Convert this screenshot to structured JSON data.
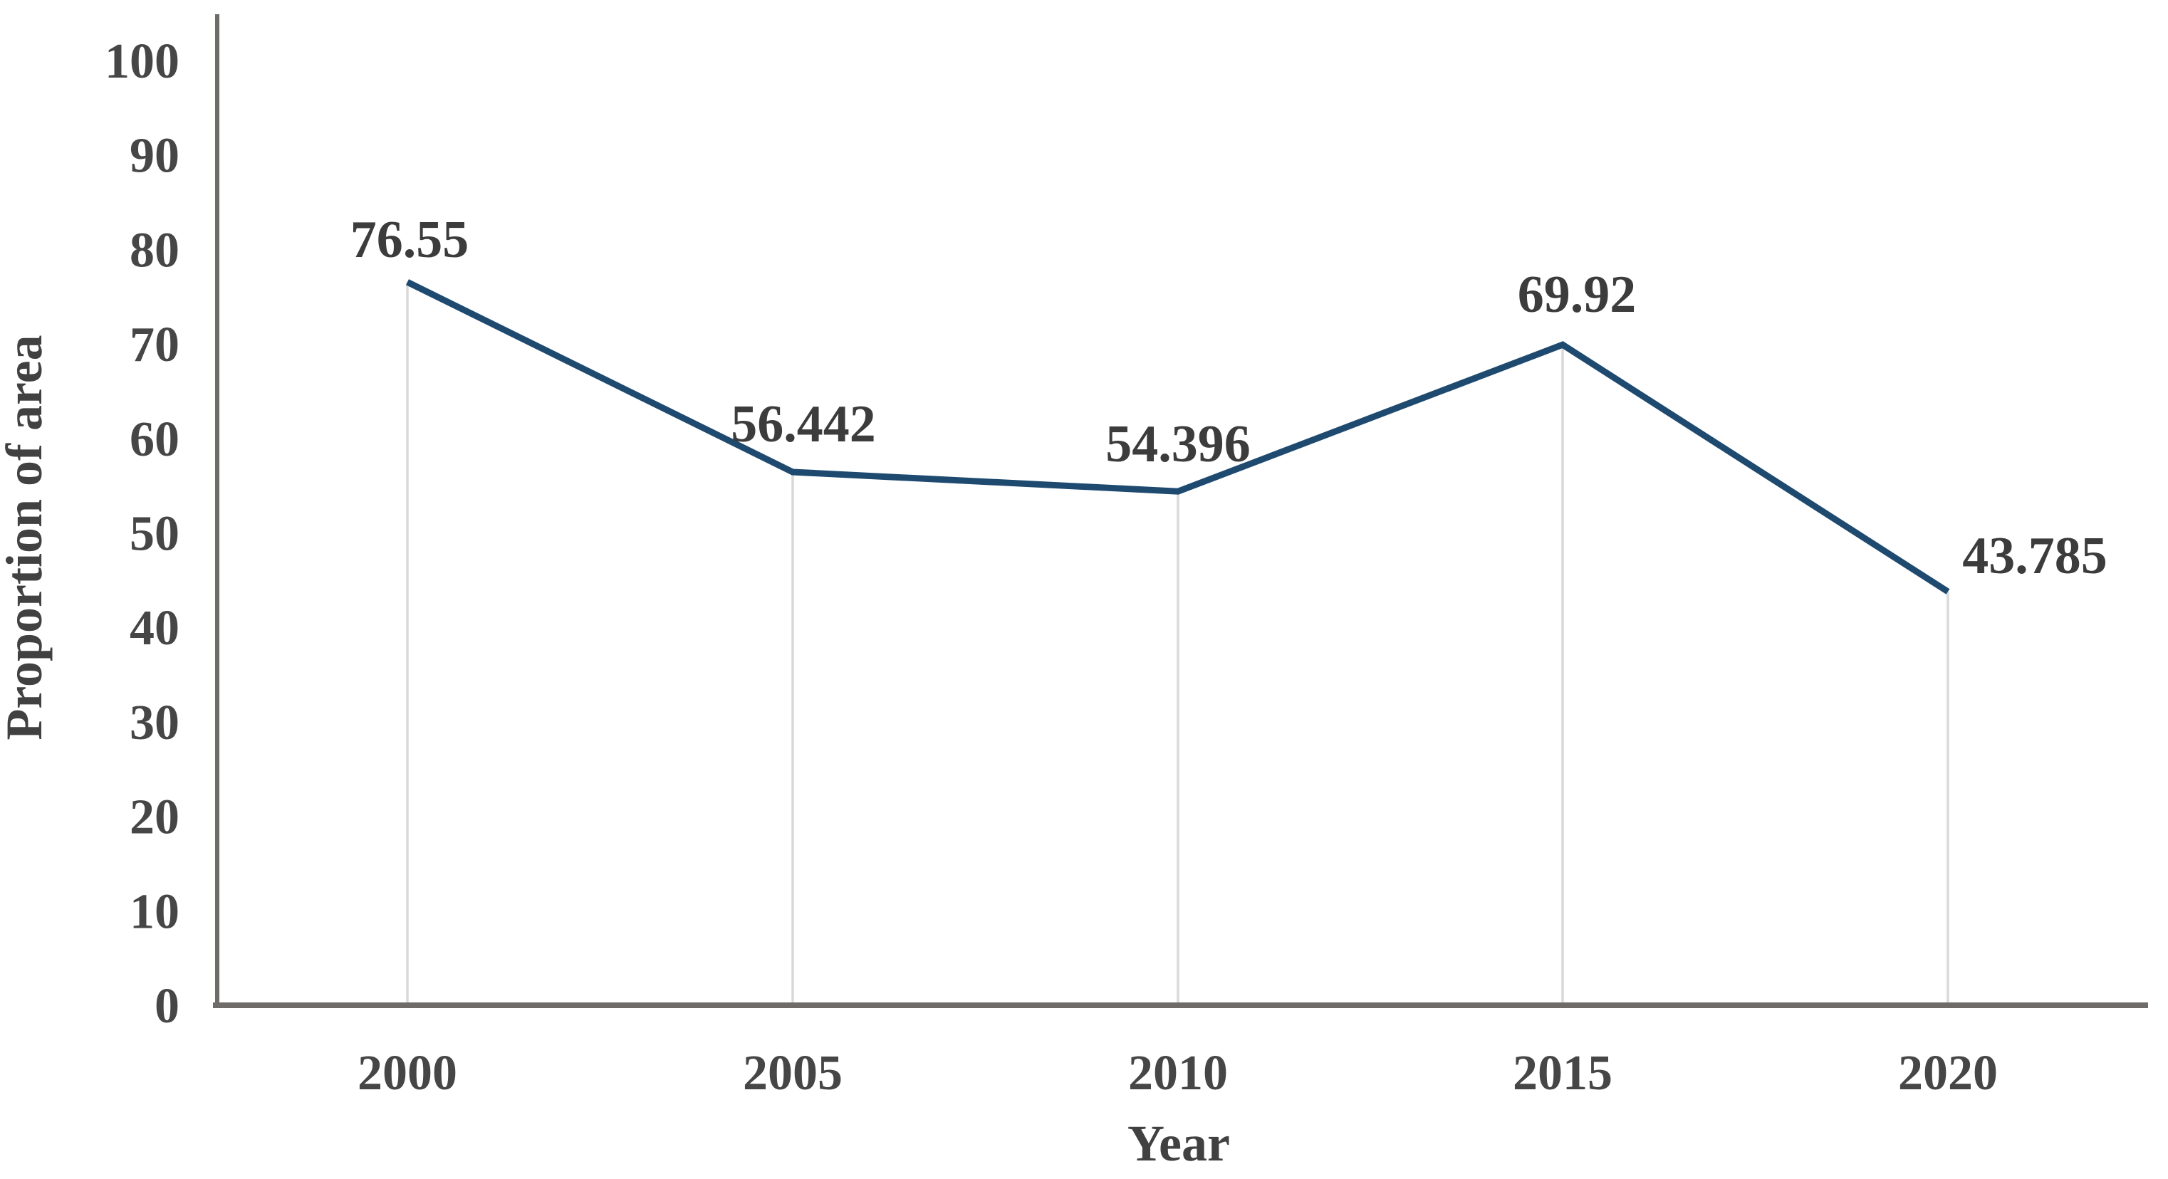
{
  "chart_data": {
    "type": "line",
    "title": "",
    "categories": [
      "2000",
      "2005",
      "2010",
      "2015",
      "2020"
    ],
    "series": [
      {
        "name": "Proportion of area",
        "values": [
          76.55,
          56.442,
          54.396,
          69.92,
          43.785
        ],
        "labels": [
          "76.55",
          "56.442",
          "54.396",
          "69.92",
          "43.785"
        ]
      }
    ],
    "xlabel": "Year",
    "ylabel": "Proportion of area",
    "ylim": [
      0,
      100
    ],
    "ytick_interval": 10,
    "yticks": [
      "0",
      "10",
      "20",
      "30",
      "40",
      "50",
      "60",
      "70",
      "80",
      "90",
      "100"
    ],
    "legend": "none",
    "gridlines": "none",
    "drop_lines_at_points": true,
    "markers": "none",
    "colors": {
      "line": "#1F4A70",
      "axis_line": "#6E6B68",
      "drop_line": "#D9D9D9",
      "tick_label": "#464646",
      "data_label": "#3C3C3C",
      "axis_title": "#414141",
      "background": "#FFFFFF"
    }
  }
}
